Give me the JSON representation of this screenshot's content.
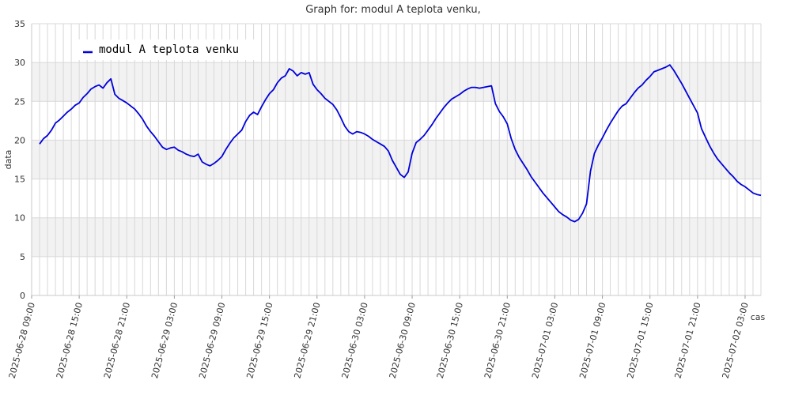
{
  "chart_data": {
    "type": "line",
    "title": "Graph for: modul A teplota venku,",
    "xlabel": "cas",
    "ylabel": "data",
    "ylim": [
      0,
      35
    ],
    "y_ticks": [
      0,
      5,
      10,
      15,
      20,
      25,
      30,
      35
    ],
    "x_range": [
      "2025-06-28 09:00",
      "2025-07-02 05:00"
    ],
    "x_tick_labels": [
      "2025-06-28 09:00",
      "2025-06-28 15:00",
      "2025-06-28 21:00",
      "2025-06-29 03:00",
      "2025-06-29 09:00",
      "2025-06-29 15:00",
      "2025-06-29 21:00",
      "2025-06-30 03:00",
      "2025-06-30 09:00",
      "2025-06-30 15:00",
      "2025-06-30 21:00",
      "2025-07-01 03:00",
      "2025-07-01 09:00",
      "2025-07-01 15:00",
      "2025-07-01 21:00",
      "2025-07-02 03:00"
    ],
    "grid": true,
    "alternating_bands": true,
    "legend": {
      "position": "top-left"
    },
    "colors": {
      "series": "#0000dd",
      "band": "#f2f2f2",
      "grid": "#d8d8d8"
    },
    "series": [
      {
        "name": "modul A teplota venku",
        "points": [
          [
            "2025-06-28 10:00",
            19.5
          ],
          [
            "2025-06-28 10:30",
            20.2
          ],
          [
            "2025-06-28 11:00",
            20.6
          ],
          [
            "2025-06-28 11:30",
            21.3
          ],
          [
            "2025-06-28 12:00",
            22.2
          ],
          [
            "2025-06-28 12:30",
            22.6
          ],
          [
            "2025-06-28 13:00",
            23.1
          ],
          [
            "2025-06-28 13:30",
            23.6
          ],
          [
            "2025-06-28 14:00",
            24.0
          ],
          [
            "2025-06-28 14:30",
            24.5
          ],
          [
            "2025-06-28 15:00",
            24.8
          ],
          [
            "2025-06-28 15:30",
            25.5
          ],
          [
            "2025-06-28 16:00",
            26.0
          ],
          [
            "2025-06-28 16:30",
            26.6
          ],
          [
            "2025-06-28 17:00",
            26.9
          ],
          [
            "2025-06-28 17:30",
            27.1
          ],
          [
            "2025-06-28 18:00",
            26.7
          ],
          [
            "2025-06-28 18:30",
            27.4
          ],
          [
            "2025-06-28 19:00",
            27.9
          ],
          [
            "2025-06-28 19:30",
            25.9
          ],
          [
            "2025-06-28 20:00",
            25.4
          ],
          [
            "2025-06-28 20:30",
            25.1
          ],
          [
            "2025-06-28 21:00",
            24.8
          ],
          [
            "2025-06-28 21:30",
            24.4
          ],
          [
            "2025-06-28 22:00",
            24.0
          ],
          [
            "2025-06-28 22:30",
            23.4
          ],
          [
            "2025-06-28 23:00",
            22.7
          ],
          [
            "2025-06-28 23:30",
            21.8
          ],
          [
            "2025-06-29 00:00",
            21.1
          ],
          [
            "2025-06-29 00:30",
            20.5
          ],
          [
            "2025-06-29 01:00",
            19.8
          ],
          [
            "2025-06-29 01:30",
            19.1
          ],
          [
            "2025-06-29 02:00",
            18.8
          ],
          [
            "2025-06-29 02:30",
            19.0
          ],
          [
            "2025-06-29 03:00",
            19.1
          ],
          [
            "2025-06-29 03:30",
            18.7
          ],
          [
            "2025-06-29 04:00",
            18.5
          ],
          [
            "2025-06-29 04:30",
            18.2
          ],
          [
            "2025-06-29 05:00",
            18.0
          ],
          [
            "2025-06-29 05:30",
            17.9
          ],
          [
            "2025-06-29 06:00",
            18.2
          ],
          [
            "2025-06-29 06:30",
            17.2
          ],
          [
            "2025-06-29 07:00",
            16.9
          ],
          [
            "2025-06-29 07:30",
            16.7
          ],
          [
            "2025-06-29 08:00",
            17.0
          ],
          [
            "2025-06-29 08:30",
            17.4
          ],
          [
            "2025-06-29 09:00",
            17.9
          ],
          [
            "2025-06-29 09:30",
            18.8
          ],
          [
            "2025-06-29 10:00",
            19.6
          ],
          [
            "2025-06-29 10:30",
            20.3
          ],
          [
            "2025-06-29 11:00",
            20.8
          ],
          [
            "2025-06-29 11:30",
            21.3
          ],
          [
            "2025-06-29 12:00",
            22.4
          ],
          [
            "2025-06-29 12:30",
            23.2
          ],
          [
            "2025-06-29 13:00",
            23.6
          ],
          [
            "2025-06-29 13:30",
            23.3
          ],
          [
            "2025-06-29 14:00",
            24.3
          ],
          [
            "2025-06-29 14:30",
            25.2
          ],
          [
            "2025-06-29 15:00",
            26.0
          ],
          [
            "2025-06-29 15:30",
            26.5
          ],
          [
            "2025-06-29 16:00",
            27.4
          ],
          [
            "2025-06-29 16:30",
            28.0
          ],
          [
            "2025-06-29 17:00",
            28.3
          ],
          [
            "2025-06-29 17:30",
            29.2
          ],
          [
            "2025-06-29 18:00",
            28.9
          ],
          [
            "2025-06-29 18:30",
            28.3
          ],
          [
            "2025-06-29 19:00",
            28.7
          ],
          [
            "2025-06-29 19:30",
            28.5
          ],
          [
            "2025-06-29 20:00",
            28.7
          ],
          [
            "2025-06-29 20:30",
            27.2
          ],
          [
            "2025-06-29 21:00",
            26.5
          ],
          [
            "2025-06-29 21:30",
            26.0
          ],
          [
            "2025-06-29 22:00",
            25.4
          ],
          [
            "2025-06-29 22:30",
            25.0
          ],
          [
            "2025-06-29 23:00",
            24.6
          ],
          [
            "2025-06-29 23:30",
            23.9
          ],
          [
            "2025-06-30 00:00",
            22.9
          ],
          [
            "2025-06-30 00:30",
            21.8
          ],
          [
            "2025-06-30 01:00",
            21.1
          ],
          [
            "2025-06-30 01:30",
            20.8
          ],
          [
            "2025-06-30 02:00",
            21.1
          ],
          [
            "2025-06-30 02:30",
            21.0
          ],
          [
            "2025-06-30 03:00",
            20.8
          ],
          [
            "2025-06-30 03:30",
            20.5
          ],
          [
            "2025-06-30 04:00",
            20.1
          ],
          [
            "2025-06-30 04:30",
            19.8
          ],
          [
            "2025-06-30 05:00",
            19.5
          ],
          [
            "2025-06-30 05:30",
            19.2
          ],
          [
            "2025-06-30 06:00",
            18.6
          ],
          [
            "2025-06-30 06:30",
            17.4
          ],
          [
            "2025-06-30 07:00",
            16.5
          ],
          [
            "2025-06-30 07:30",
            15.6
          ],
          [
            "2025-06-30 08:00",
            15.2
          ],
          [
            "2025-06-30 08:30",
            15.9
          ],
          [
            "2025-06-30 09:00",
            18.3
          ],
          [
            "2025-06-30 09:30",
            19.7
          ],
          [
            "2025-06-30 10:00",
            20.1
          ],
          [
            "2025-06-30 10:30",
            20.6
          ],
          [
            "2025-06-30 11:00",
            21.3
          ],
          [
            "2025-06-30 11:30",
            22.0
          ],
          [
            "2025-06-30 12:00",
            22.8
          ],
          [
            "2025-06-30 12:30",
            23.5
          ],
          [
            "2025-06-30 13:00",
            24.2
          ],
          [
            "2025-06-30 13:30",
            24.8
          ],
          [
            "2025-06-30 14:00",
            25.3
          ],
          [
            "2025-06-30 14:30",
            25.6
          ],
          [
            "2025-06-30 15:00",
            25.9
          ],
          [
            "2025-06-30 15:30",
            26.3
          ],
          [
            "2025-06-30 16:00",
            26.6
          ],
          [
            "2025-06-30 16:30",
            26.8
          ],
          [
            "2025-06-30 17:00",
            26.8
          ],
          [
            "2025-06-30 17:30",
            26.7
          ],
          [
            "2025-06-30 18:00",
            26.8
          ],
          [
            "2025-06-30 18:30",
            26.9
          ],
          [
            "2025-06-30 19:00",
            27.0
          ],
          [
            "2025-06-30 19:30",
            24.7
          ],
          [
            "2025-06-30 20:00",
            23.7
          ],
          [
            "2025-06-30 20:30",
            23.0
          ],
          [
            "2025-06-30 21:00",
            22.1
          ],
          [
            "2025-06-30 21:30",
            20.2
          ],
          [
            "2025-06-30 22:00",
            18.8
          ],
          [
            "2025-06-30 22:30",
            17.8
          ],
          [
            "2025-06-30 23:00",
            17.0
          ],
          [
            "2025-06-30 23:30",
            16.2
          ],
          [
            "2025-07-01 00:00",
            15.3
          ],
          [
            "2025-07-01 00:30",
            14.6
          ],
          [
            "2025-07-01 01:00",
            13.9
          ],
          [
            "2025-07-01 01:30",
            13.2
          ],
          [
            "2025-07-01 02:00",
            12.6
          ],
          [
            "2025-07-01 02:30",
            12.0
          ],
          [
            "2025-07-01 03:00",
            11.4
          ],
          [
            "2025-07-01 03:30",
            10.8
          ],
          [
            "2025-07-01 04:00",
            10.4
          ],
          [
            "2025-07-01 04:30",
            10.1
          ],
          [
            "2025-07-01 05:00",
            9.7
          ],
          [
            "2025-07-01 05:30",
            9.5
          ],
          [
            "2025-07-01 06:00",
            9.8
          ],
          [
            "2025-07-01 06:30",
            10.6
          ],
          [
            "2025-07-01 07:00",
            11.8
          ],
          [
            "2025-07-01 07:30",
            16.0
          ],
          [
            "2025-07-01 08:00",
            18.3
          ],
          [
            "2025-07-01 08:30",
            19.4
          ],
          [
            "2025-07-01 09:00",
            20.3
          ],
          [
            "2025-07-01 09:30",
            21.3
          ],
          [
            "2025-07-01 10:00",
            22.2
          ],
          [
            "2025-07-01 10:30",
            23.0
          ],
          [
            "2025-07-01 11:00",
            23.8
          ],
          [
            "2025-07-01 11:30",
            24.4
          ],
          [
            "2025-07-01 12:00",
            24.7
          ],
          [
            "2025-07-01 12:30",
            25.4
          ],
          [
            "2025-07-01 13:00",
            26.1
          ],
          [
            "2025-07-01 13:30",
            26.7
          ],
          [
            "2025-07-01 14:00",
            27.1
          ],
          [
            "2025-07-01 14:30",
            27.7
          ],
          [
            "2025-07-01 15:00",
            28.2
          ],
          [
            "2025-07-01 15:30",
            28.8
          ],
          [
            "2025-07-01 16:00",
            29.0
          ],
          [
            "2025-07-01 16:30",
            29.2
          ],
          [
            "2025-07-01 17:00",
            29.4
          ],
          [
            "2025-07-01 17:30",
            29.7
          ],
          [
            "2025-07-01 18:00",
            29.0
          ],
          [
            "2025-07-01 19:00",
            27.3
          ],
          [
            "2025-07-01 20:00",
            25.4
          ],
          [
            "2025-07-01 21:00",
            23.5
          ],
          [
            "2025-07-01 21:30",
            21.5
          ],
          [
            "2025-07-01 22:00",
            20.4
          ],
          [
            "2025-07-01 22:30",
            19.3
          ],
          [
            "2025-07-01 23:00",
            18.4
          ],
          [
            "2025-07-01 23:30",
            17.6
          ],
          [
            "2025-07-02 00:00",
            17.0
          ],
          [
            "2025-07-02 00:30",
            16.4
          ],
          [
            "2025-07-02 01:00",
            15.8
          ],
          [
            "2025-07-02 01:30",
            15.3
          ],
          [
            "2025-07-02 02:00",
            14.7
          ],
          [
            "2025-07-02 02:30",
            14.3
          ],
          [
            "2025-07-02 03:00",
            14.0
          ],
          [
            "2025-07-02 03:30",
            13.6
          ],
          [
            "2025-07-02 04:00",
            13.2
          ],
          [
            "2025-07-02 04:30",
            13.0
          ],
          [
            "2025-07-02 05:00",
            12.9
          ]
        ]
      }
    ]
  }
}
